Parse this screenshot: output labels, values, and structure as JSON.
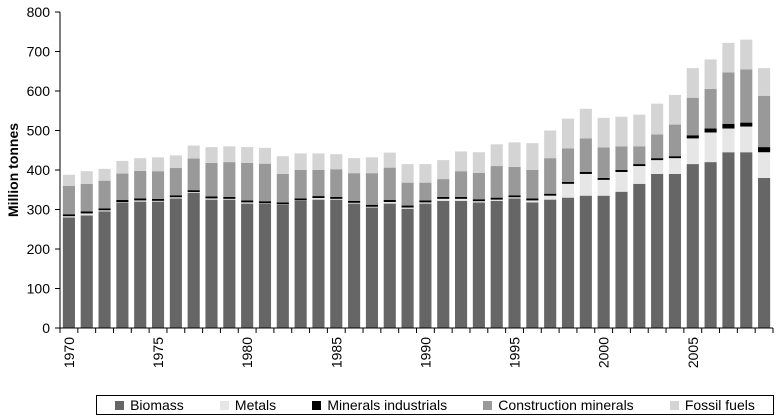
{
  "chart_data": {
    "type": "bar",
    "stacked": true,
    "title": "",
    "xlabel": "",
    "ylabel": "Million tonnes",
    "ylim": [
      0,
      800
    ],
    "yticks": [
      "0",
      "100",
      "200",
      "300",
      "400",
      "500",
      "600",
      "700",
      "800"
    ],
    "grid": false,
    "legend_position": "bottom",
    "categories": [
      "1970",
      "1971",
      "1972",
      "1973",
      "1974",
      "1975",
      "1976",
      "1977",
      "1978",
      "1979",
      "1980",
      "1981",
      "1982",
      "1983",
      "1984",
      "1985",
      "1986",
      "1987",
      "1988",
      "1989",
      "1990",
      "1991",
      "1992",
      "1993",
      "1994",
      "1995",
      "1996",
      "1997",
      "1998",
      "1999",
      "2000",
      "2001",
      "2002",
      "2003",
      "2004",
      "2005",
      "2006",
      "2007",
      "2008",
      "2009"
    ],
    "x_tick_labels": [
      "1970",
      "1975",
      "1980",
      "1985",
      "1990",
      "1995",
      "2000",
      "2005"
    ],
    "series": [
      {
        "name": "Biomass",
        "color": "#666666",
        "values": [
          280,
          285,
          295,
          318,
          320,
          320,
          328,
          342,
          325,
          325,
          315,
          315,
          312,
          322,
          325,
          325,
          315,
          305,
          315,
          302,
          315,
          322,
          322,
          318,
          322,
          328,
          318,
          325,
          330,
          335,
          335,
          345,
          365,
          390,
          390,
          415,
          420,
          445,
          445,
          380
        ]
      },
      {
        "name": "Metals",
        "color": "#e6e6e6",
        "values": [
          3,
          5,
          3,
          1,
          3,
          2,
          3,
          2,
          3,
          2,
          3,
          1,
          1,
          1,
          4,
          2,
          2,
          2,
          4,
          3,
          3,
          5,
          5,
          3,
          3,
          3,
          5,
          10,
          35,
          55,
          40,
          50,
          45,
          35,
          40,
          65,
          75,
          60,
          65,
          65
        ]
      },
      {
        "name": "Minerals industrials",
        "color": "#000000",
        "values": [
          5,
          5,
          5,
          5,
          5,
          5,
          5,
          5,
          5,
          5,
          5,
          5,
          5,
          5,
          5,
          5,
          5,
          5,
          5,
          5,
          5,
          5,
          5,
          5,
          5,
          5,
          5,
          5,
          5,
          5,
          5,
          5,
          5,
          5,
          5,
          8,
          10,
          12,
          10,
          13
        ]
      },
      {
        "name": "Construction minerals",
        "color": "#999999",
        "values": [
          72,
          70,
          70,
          67,
          70,
          70,
          69,
          80,
          85,
          88,
          95,
          95,
          72,
          72,
          66,
          70,
          70,
          80,
          82,
          58,
          45,
          45,
          65,
          67,
          80,
          72,
          72,
          90,
          85,
          85,
          77,
          60,
          45,
          60,
          80,
          95,
          100,
          130,
          135,
          130
        ]
      },
      {
        "name": "Fossil fuels",
        "color": "#d4d4d4",
        "values": [
          28,
          32,
          30,
          32,
          32,
          35,
          32,
          33,
          40,
          40,
          40,
          40,
          45,
          42,
          42,
          38,
          38,
          40,
          38,
          47,
          47,
          48,
          50,
          52,
          55,
          62,
          68,
          70,
          75,
          75,
          75,
          75,
          80,
          78,
          75,
          75,
          75,
          75,
          75,
          70
        ]
      }
    ]
  }
}
